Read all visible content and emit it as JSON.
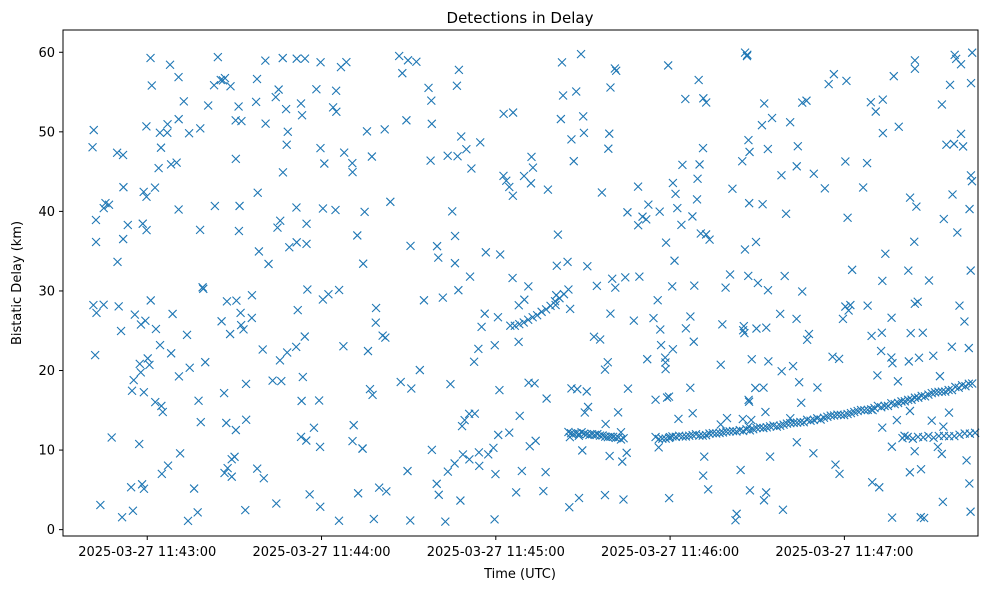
{
  "chart_data": {
    "type": "scatter",
    "title": "Detections in Delay",
    "xlabel": "Time (UTC)",
    "ylabel": "Bistatic Delay (km)",
    "marker": "x",
    "color": "#1f77b4",
    "grid": false,
    "x_time_range": [
      "2025-03-27 11:42:31",
      "2025-03-27 11:47:46"
    ],
    "xlim_seconds": [
      -29,
      286
    ],
    "ylim": [
      -0.8,
      62.8
    ],
    "xticks": [
      {
        "t": 0,
        "label": "2025-03-27 11:43:00"
      },
      {
        "t": 60,
        "label": "2025-03-27 11:44:00"
      },
      {
        "t": 120,
        "label": "2025-03-27 11:45:00"
      },
      {
        "t": 180,
        "label": "2025-03-27 11:46:00"
      },
      {
        "t": 240,
        "label": "2025-03-27 11:47:00"
      }
    ],
    "yticks": [
      {
        "v": 0,
        "label": "0"
      },
      {
        "v": 10,
        "label": "10"
      },
      {
        "v": 20,
        "label": "20"
      },
      {
        "v": 30,
        "label": "30"
      },
      {
        "v": 40,
        "label": "40"
      },
      {
        "v": 50,
        "label": "50"
      },
      {
        "v": 60,
        "label": "60"
      }
    ],
    "tracks": [
      {
        "t_start": 145,
        "t_end": 164,
        "y_start": 12.2,
        "y_end": 11.4,
        "count": 22
      },
      {
        "t_start": 175,
        "t_end": 284,
        "y_start": 11.5,
        "y_end": 18.4,
        "count": 95
      },
      {
        "t_start": 125,
        "t_end": 145,
        "y_start": 25.5,
        "y_end": 30.3,
        "count": 14
      },
      {
        "t_start": 260,
        "t_end": 285,
        "y_start": 11.5,
        "y_end": 12.2,
        "count": 15
      }
    ],
    "clutter": {
      "count": 560,
      "t_range": [
        -19,
        284
      ],
      "y_range": [
        1,
        60
      ],
      "seed": 1234
    }
  }
}
